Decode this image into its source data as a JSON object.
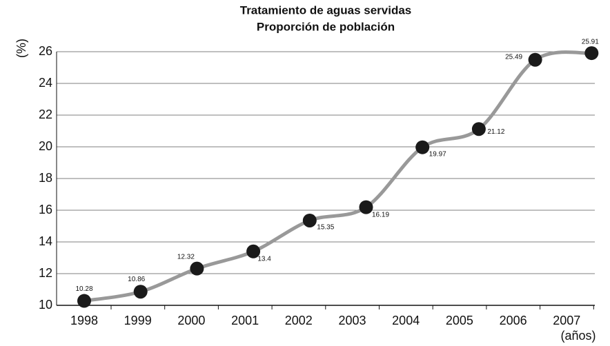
{
  "chart_data": {
    "type": "line",
    "title": "Tratamiento de aguas servidas",
    "subtitle": "Proporción de población",
    "y_label": "(%)",
    "x_label": "(años)",
    "categories": [
      "1998",
      "1999",
      "2000",
      "2001",
      "2002",
      "2003",
      "2004",
      "2005",
      "2006",
      "2007"
    ],
    "series": [
      {
        "name": "Proporción de población",
        "color": "#999999",
        "values": [
          10.28,
          10.86,
          12.32,
          13.4,
          15.35,
          16.19,
          19.97,
          21.12,
          25.49,
          25.91
        ]
      }
    ],
    "marker_color": "#1a1a1a",
    "ylim": [
      10,
      26
    ],
    "yticks": [
      10,
      12,
      14,
      16,
      18,
      20,
      22,
      24,
      26
    ],
    "grid": true
  }
}
